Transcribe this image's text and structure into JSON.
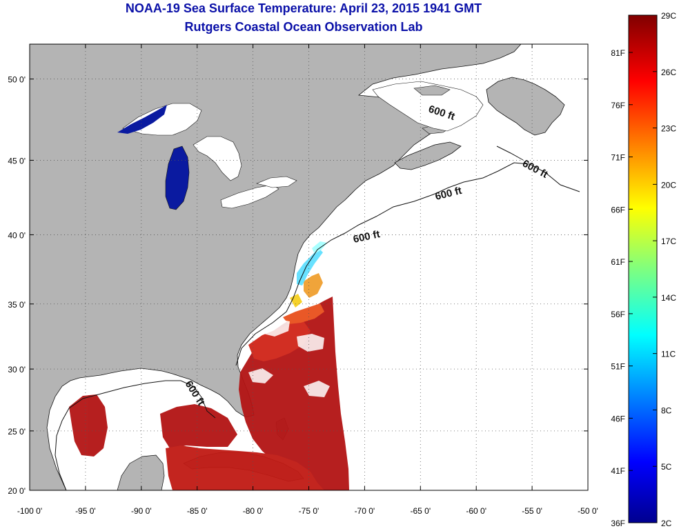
{
  "header": {
    "title": "NOAA-19 Sea Surface Temperature:  April 23, 2015 1941 GMT",
    "subtitle": "Rutgers Coastal Ocean Observation Lab"
  },
  "map": {
    "lon_range": [
      -100,
      -50
    ],
    "lat_range": [
      20,
      52
    ],
    "lon_ticks": [
      -100,
      -95,
      -90,
      -85,
      -80,
      -75,
      -70,
      -65,
      -60,
      -55,
      -50
    ],
    "lon_tick_labels": [
      "-100 0'",
      "-95 0'",
      "-90 0'",
      "-85 0'",
      "-80 0'",
      "-75 0'",
      "-70 0'",
      "-65 0'",
      "-60 0'",
      "-55 0'",
      "-50 0'"
    ],
    "lat_ticks": [
      20,
      25,
      30,
      35,
      40,
      45,
      50
    ],
    "lat_tick_labels": [
      "20 0'",
      "25 0'",
      "30 0'",
      "35 0'",
      "40 0'",
      "45 0'",
      "50 0'"
    ],
    "grid": "dotted",
    "contour_label": "600 ft",
    "colors": {
      "land": "#b4b4b4",
      "ocean_nodata": "#ffffff",
      "great_lakes": "#0a1aa0"
    }
  },
  "colorbar": {
    "celsius_labels": [
      "29C",
      "26C",
      "23C",
      "20C",
      "17C",
      "14C",
      "11C",
      "8C",
      "5C",
      "2C"
    ],
    "fahrenheit_labels": [
      "81F",
      "76F",
      "71F",
      "66F",
      "61F",
      "56F",
      "51F",
      "46F",
      "41F",
      "36F"
    ],
    "colormap": "jet",
    "range_c": [
      2,
      29
    ]
  }
}
